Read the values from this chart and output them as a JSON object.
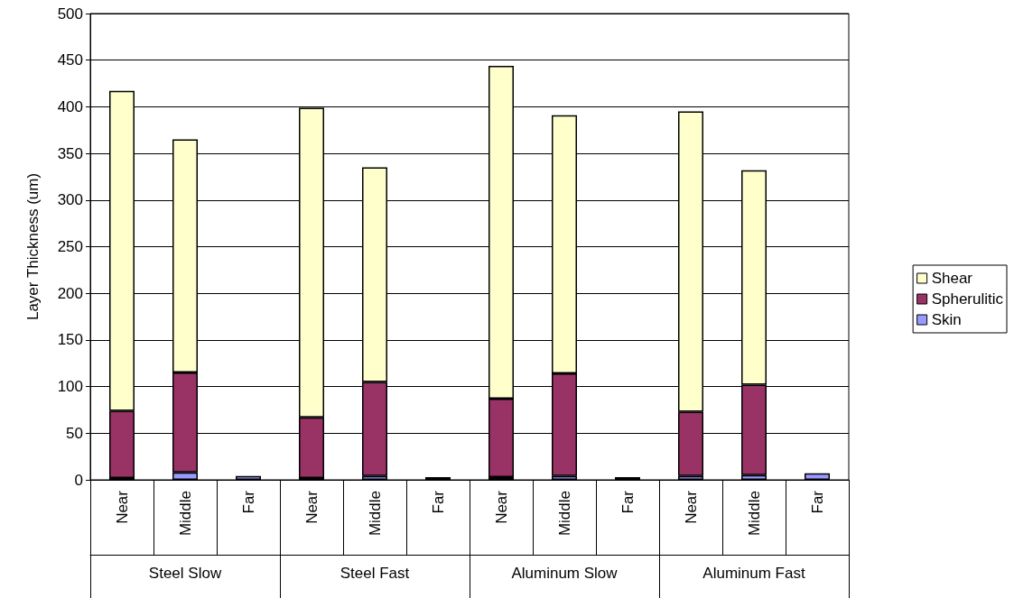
{
  "chart_data": {
    "type": "bar",
    "stacked": true,
    "ylabel": "Layer Thickness (um)",
    "categories": [
      "Near",
      "Middle",
      "Far",
      "Near",
      "Middle",
      "Far",
      "Near",
      "Middle",
      "Far",
      "Near",
      "Middle",
      "Far"
    ],
    "series": [
      {
        "name": "Skin",
        "color": "#9999ff",
        "values": [
          2,
          8,
          4,
          2,
          4,
          3,
          3,
          4,
          3,
          4,
          5,
          7
        ]
      },
      {
        "name": "Spherulitic",
        "color": "#993366",
        "values": [
          72,
          107,
          null,
          65,
          101,
          null,
          84,
          110,
          null,
          69,
          97,
          null
        ]
      },
      {
        "name": "Shear",
        "color": "#ffffcc",
        "values": [
          343,
          250,
          null,
          332,
          230,
          null,
          357,
          277,
          null,
          322,
          230,
          null
        ]
      }
    ],
    "annotations": [
      "Steel Slow",
      "Steel Fast",
      "Aluminum Slow",
      "Aluminum Fast"
    ],
    "ylim": [
      0,
      500
    ],
    "yticks": [
      0,
      50,
      100,
      150,
      200,
      250,
      300,
      350,
      400,
      450,
      500
    ],
    "grid": "y",
    "legend": "right"
  }
}
